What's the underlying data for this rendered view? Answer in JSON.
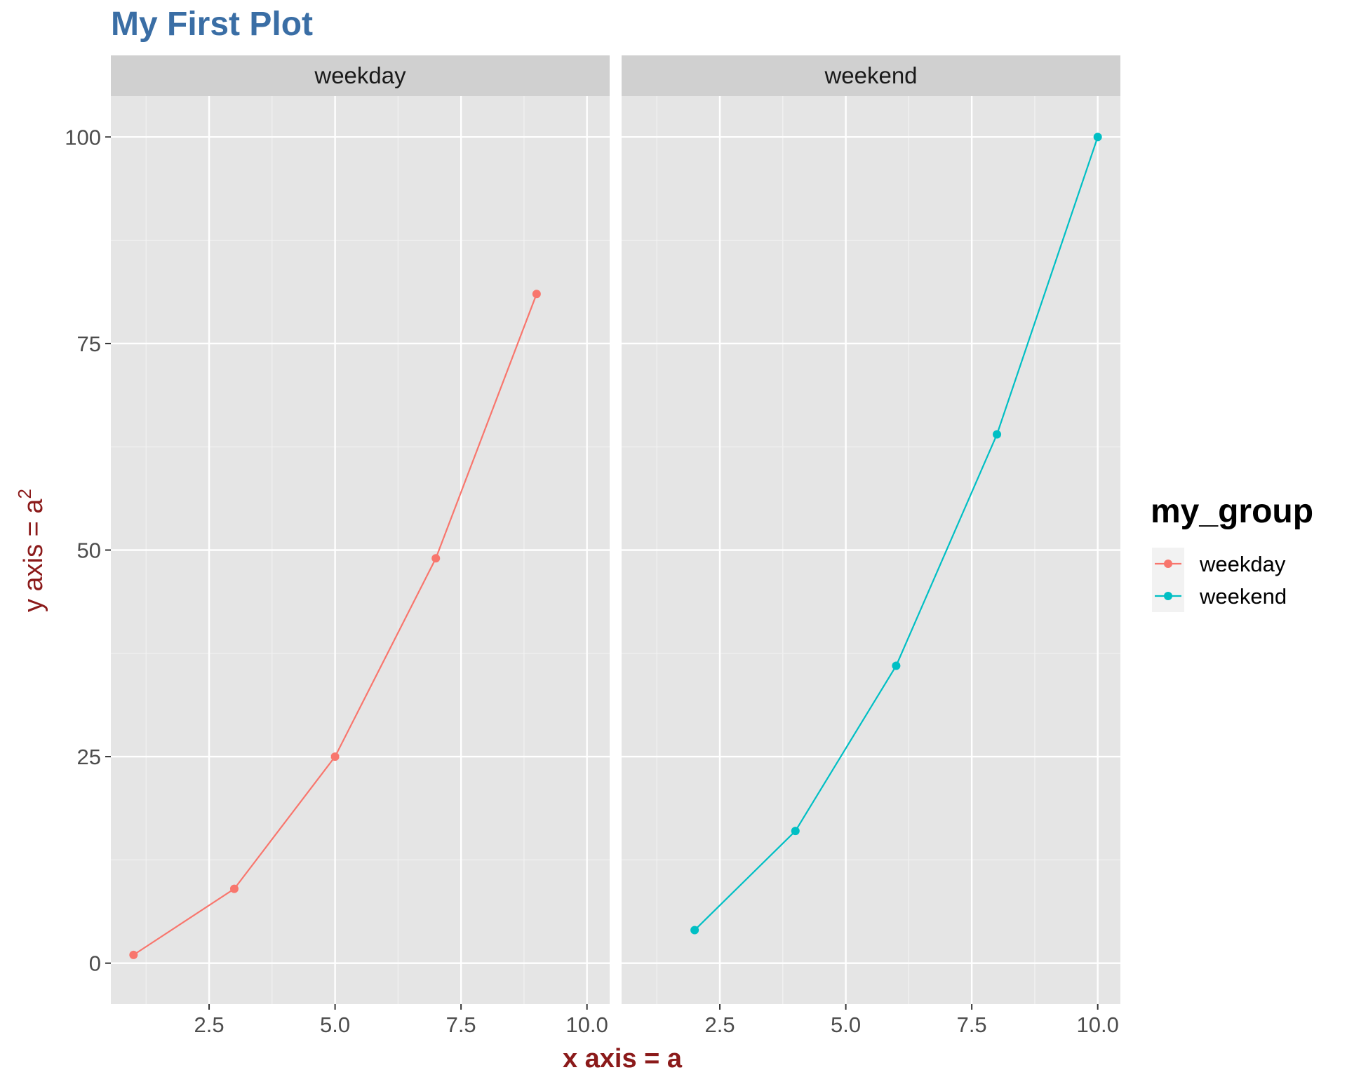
{
  "chart_data": {
    "type": "line",
    "title": "My First Plot",
    "title_color": "#3a6ea5",
    "xlabel": "x axis = a",
    "ylabel_base": "y axis = a",
    "ylabel_superscript": "2",
    "axis_title_color": "#8b1a1a",
    "panel_background": "#e5e5e5",
    "strip_background": "#d0d0d0",
    "grid": true,
    "xlim": [
      0.55,
      10.45
    ],
    "ylim": [
      -4.95,
      104.95
    ],
    "x_ticks": [
      2.5,
      5.0,
      7.5,
      10.0
    ],
    "x_tick_labels": [
      "2.5",
      "5.0",
      "7.5",
      "10.0"
    ],
    "y_ticks": [
      0,
      25,
      50,
      75,
      100
    ],
    "y_tick_labels": [
      "0",
      "25",
      "50",
      "75",
      "100"
    ],
    "facets": [
      {
        "label": "weekday",
        "series": "weekday"
      },
      {
        "label": "weekend",
        "series": "weekend"
      }
    ],
    "series": [
      {
        "name": "weekday",
        "color": "#f8766d",
        "x": [
          1,
          3,
          5,
          7,
          9
        ],
        "y": [
          1,
          9,
          25,
          49,
          81
        ]
      },
      {
        "name": "weekend",
        "color": "#00bfc4",
        "x": [
          2,
          4,
          6,
          8,
          10
        ],
        "y": [
          4,
          16,
          36,
          64,
          100
        ]
      }
    ],
    "legend": {
      "title": "my_group",
      "position": "right",
      "items": [
        "weekday",
        "weekend"
      ]
    }
  }
}
